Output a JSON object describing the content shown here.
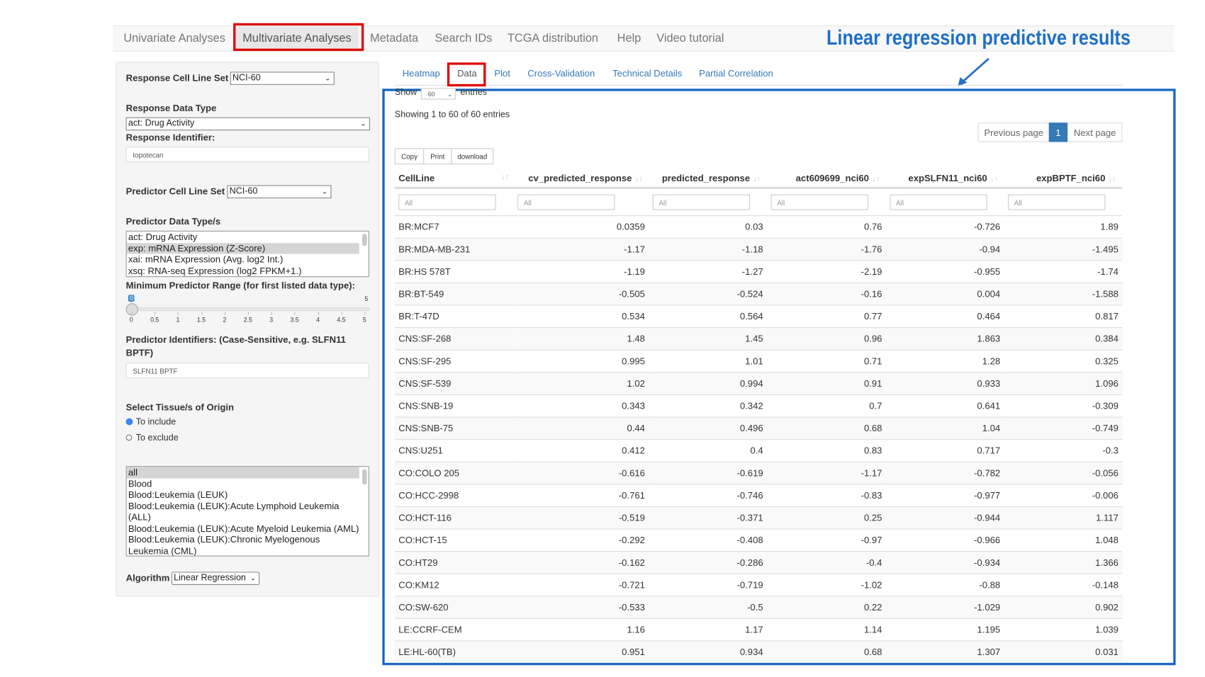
{
  "navbar": {
    "items": [
      "Univariate Analyses",
      "Multivariate Analyses",
      "Metadata",
      "Search IDs",
      "TCGA distribution",
      "Help",
      "Video tutorial"
    ],
    "active": "Multivariate Analyses"
  },
  "annotation": {
    "text": "Linear regression predictive results",
    "color": "#1f6fc5",
    "highlight_color": "#e10000"
  },
  "sidebar": {
    "response_cell_line_set_label": "Response Cell Line Set",
    "response_cell_line_set_value": "NCI-60",
    "response_data_type_label": "Response Data Type",
    "response_data_type_value": "act: Drug Activity",
    "response_identifier_label": "Response Identifier:",
    "response_identifier_value": "topotecan",
    "predictor_cell_line_set_label": "Predictor Cell Line Set",
    "predictor_cell_line_set_value": "NCI-60",
    "predictor_data_types_label": "Predictor Data Type/s",
    "predictor_data_types": [
      "act: Drug Activity",
      "exp: mRNA Expression (Z-Score)",
      "xai: mRNA Expression (Avg. log2 Int.)",
      "xsq: RNA-seq Expression (log2 FPKM+1.)"
    ],
    "predictor_data_types_selected": "exp: mRNA Expression (Z-Score)",
    "min_range_label": "Minimum Predictor Range (for first listed data type):",
    "slider": {
      "value": "0",
      "min": "0",
      "max": "5",
      "ticks": [
        "0",
        "0.5",
        "1",
        "1.5",
        "2",
        "2.5",
        "3",
        "3.5",
        "4",
        "4.5",
        "5"
      ]
    },
    "predictor_identifiers_label_1": "Predictor Identifiers: (Case-Sensitive, e.g. SLFN11",
    "predictor_identifiers_label_2": "BPTF)",
    "predictor_identifiers_value": "SLFN11 BPTF",
    "tissue_label": "Select Tissue/s of Origin",
    "radio_include": "To include",
    "radio_exclude": "To exclude",
    "tissues": [
      "all",
      "Blood",
      "Blood:Leukemia (LEUK)",
      "Blood:Leukemia (LEUK):Acute Lymphoid Leukemia",
      "(ALL)",
      "Blood:Leukemia (LEUK):Acute Myeloid Leukemia (AML)",
      "Blood:Leukemia (LEUK):Chronic Myelogenous",
      "Leukemia (CML)"
    ],
    "algorithm_label": "Algorithm",
    "algorithm_value": "Linear Regression"
  },
  "tabs": [
    "Heatmap",
    "Data",
    "Plot",
    "Cross-Validation",
    "Technical Details",
    "Partial Correlation"
  ],
  "active_tab": "Data",
  "table_controls": {
    "show_label": "Show",
    "show_value": "60",
    "entries_label": "entries",
    "info": "Showing 1 to 60 of 60 entries",
    "prev": "Previous page",
    "page": "1",
    "next": "Next page",
    "buttons": [
      "Copy",
      "Print",
      "download"
    ],
    "filter_placeholder": "All"
  },
  "table": {
    "columns": [
      "CellLine",
      "cv_predicted_response",
      "predicted_response",
      "act609699_nci60",
      "expSLFN11_nci60",
      "expBPTF_nci60"
    ],
    "rows": [
      [
        "BR:MCF7",
        "0.0359",
        "0.03",
        "0.76",
        "-0.726",
        "1.89"
      ],
      [
        "BR:MDA-MB-231",
        "-1.17",
        "-1.18",
        "-1.76",
        "-0.94",
        "-1.495"
      ],
      [
        "BR:HS 578T",
        "-1.19",
        "-1.27",
        "-2.19",
        "-0.955",
        "-1.74"
      ],
      [
        "BR:BT-549",
        "-0.505",
        "-0.524",
        "-0.16",
        "0.004",
        "-1.588"
      ],
      [
        "BR:T-47D",
        "0.534",
        "0.564",
        "0.77",
        "0.464",
        "0.817"
      ],
      [
        "CNS:SF-268",
        "1.48",
        "1.45",
        "0.96",
        "1.863",
        "0.384"
      ],
      [
        "CNS:SF-295",
        "0.995",
        "1.01",
        "0.71",
        "1.28",
        "0.325"
      ],
      [
        "CNS:SF-539",
        "1.02",
        "0.994",
        "0.91",
        "0.933",
        "1.096"
      ],
      [
        "CNS:SNB-19",
        "0.343",
        "0.342",
        "0.7",
        "0.641",
        "-0.309"
      ],
      [
        "CNS:SNB-75",
        "0.44",
        "0.496",
        "0.68",
        "1.04",
        "-0.749"
      ],
      [
        "CNS:U251",
        "0.412",
        "0.4",
        "0.83",
        "0.717",
        "-0.3"
      ],
      [
        "CO:COLO 205",
        "-0.616",
        "-0.619",
        "-1.17",
        "-0.782",
        "-0.056"
      ],
      [
        "CO:HCC-2998",
        "-0.761",
        "-0.746",
        "-0.83",
        "-0.977",
        "-0.006"
      ],
      [
        "CO:HCT-116",
        "-0.519",
        "-0.371",
        "0.25",
        "-0.944",
        "1.117"
      ],
      [
        "CO:HCT-15",
        "-0.292",
        "-0.408",
        "-0.97",
        "-0.966",
        "1.048"
      ],
      [
        "CO:HT29",
        "-0.162",
        "-0.286",
        "-0.4",
        "-0.934",
        "1.366"
      ],
      [
        "CO:KM12",
        "-0.721",
        "-0.719",
        "-1.02",
        "-0.88",
        "-0.148"
      ],
      [
        "CO:SW-620",
        "-0.533",
        "-0.5",
        "0.22",
        "-1.029",
        "0.902"
      ],
      [
        "LE:CCRF-CEM",
        "1.16",
        "1.17",
        "1.14",
        "1.195",
        "1.039"
      ],
      [
        "LE:HL-60(TB)",
        "0.951",
        "0.934",
        "0.68",
        "1.307",
        "0.031"
      ]
    ]
  }
}
